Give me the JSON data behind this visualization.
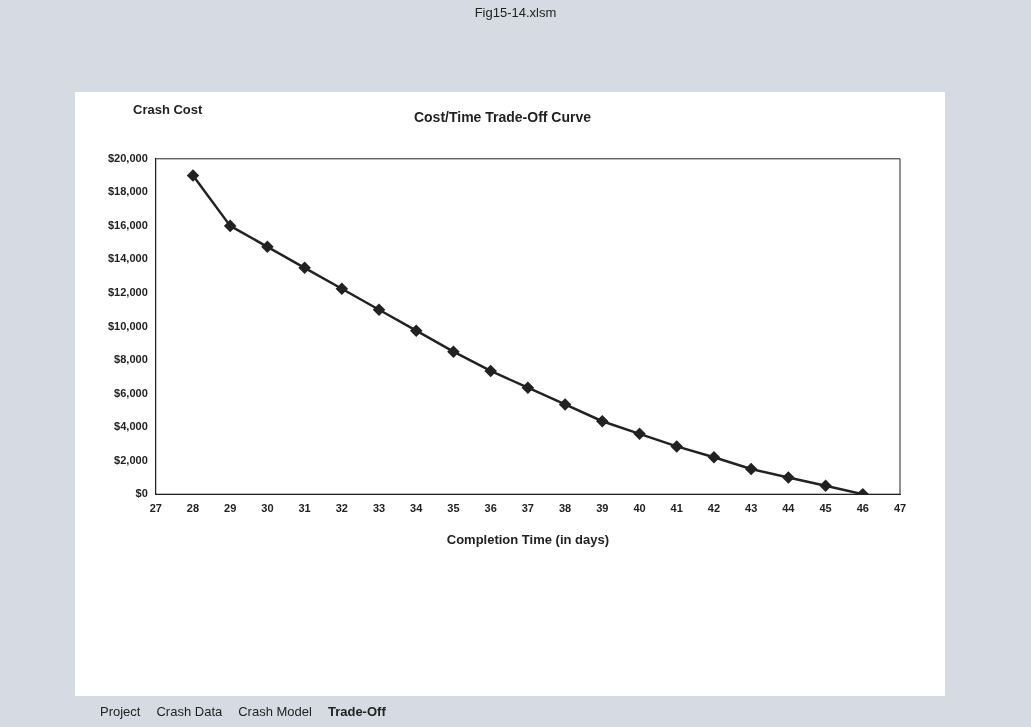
{
  "chart_data": {
    "type": "line",
    "title": "Cost/Time Trade-Off Curve",
    "xlabel": "Completion Time (in days)",
    "ylabel": "Crash Cost",
    "x": [
      28,
      29,
      30,
      31,
      32,
      33,
      34,
      35,
      36,
      37,
      38,
      39,
      40,
      41,
      42,
      43,
      44,
      45,
      46
    ],
    "series": [
      {
        "color": "#222222",
        "values": [
          19000,
          16000,
          14750,
          13500,
          12250,
          11000,
          9750,
          8500,
          7350,
          6350,
          5350,
          4350,
          3600,
          2850,
          2200,
          1500,
          1000,
          500,
          0
        ]
      }
    ],
    "xlim": [
      27,
      47
    ],
    "xticks": [
      27,
      28,
      29,
      30,
      31,
      32,
      33,
      34,
      35,
      36,
      37,
      38,
      39,
      40,
      41,
      42,
      43,
      44,
      45,
      46,
      47
    ],
    "ylim": [
      0,
      20000
    ],
    "yticks": [
      {
        "value": 0,
        "label": "$0"
      },
      {
        "value": 2000,
        "label": "$2,000"
      },
      {
        "value": 4000,
        "label": "$4,000"
      },
      {
        "value": 6000,
        "label": "$6,000"
      },
      {
        "value": 8000,
        "label": "$8,000"
      },
      {
        "value": 10000,
        "label": "$10,000"
      },
      {
        "value": 12000,
        "label": "$12,000"
      },
      {
        "value": 14000,
        "label": "$14,000"
      },
      {
        "value": 16000,
        "label": "$16,000"
      },
      {
        "value": 18000,
        "label": "$18,000"
      },
      {
        "value": 20000,
        "label": "$20,000"
      }
    ],
    "grid": false,
    "legend": false,
    "marker": "diamond",
    "line_style": "solid",
    "annotations": [
      "Fig15-14.xlsm",
      "Project",
      "Crash Data",
      "Crash Model",
      "Trade-Off"
    ]
  }
}
